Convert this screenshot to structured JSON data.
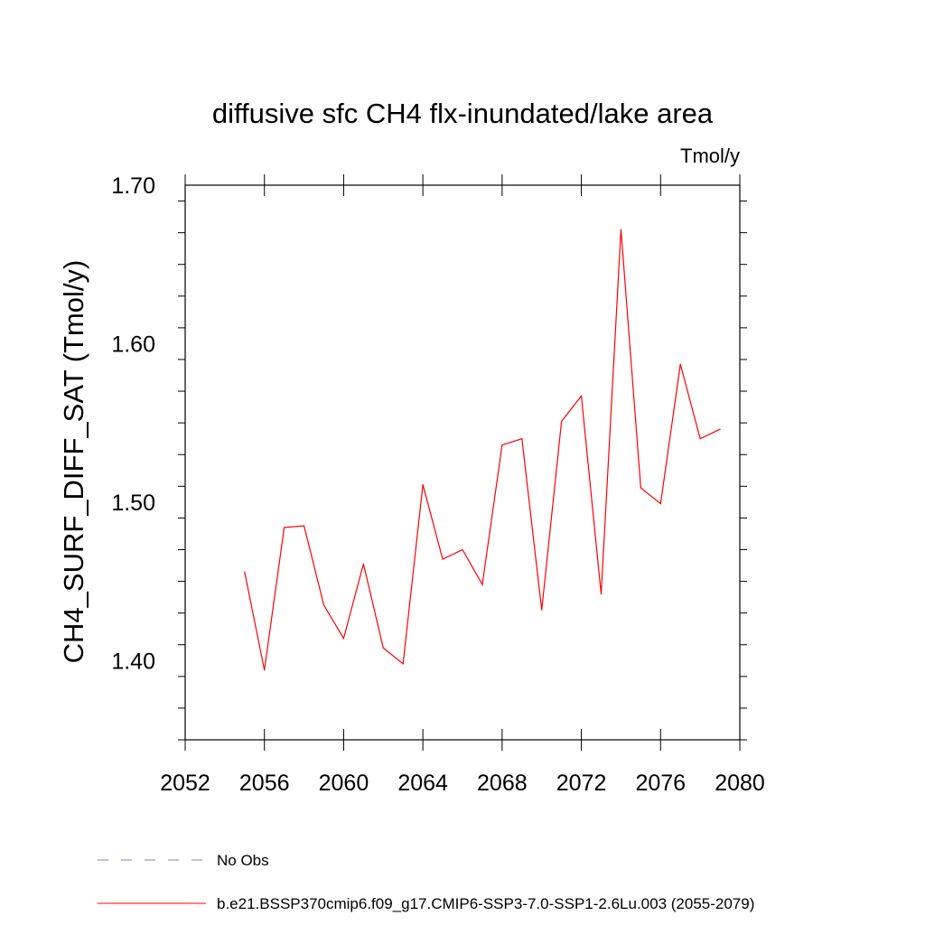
{
  "chart_data": {
    "type": "line",
    "title": "diffusive sfc CH4 flx-inundated/lake area",
    "units": "Tmol/y",
    "ylabel": "CH4_SURF_DIFF_SAT  (Tmol/y)",
    "xlabel": "",
    "xlim": [
      2052,
      2080
    ],
    "ylim": [
      1.35,
      1.7
    ],
    "x_ticks": [
      "2052",
      "2056",
      "2060",
      "2064",
      "2068",
      "2072",
      "2076",
      "2080"
    ],
    "y_ticks": [
      "1.40",
      "1.50",
      "1.60",
      "1.70"
    ],
    "grid": false,
    "legend_position": "bottom",
    "series": [
      {
        "name": "b.e21.BSSP370cmip6.f09_g17.CMIP6-SSP3-7.0-SSP1-2.6Lu.003 (2055-2079)",
        "color": "#ff0000",
        "style": "solid",
        "x": [
          2055,
          2056,
          2057,
          2058,
          2059,
          2060,
          2061,
          2062,
          2063,
          2064,
          2065,
          2066,
          2067,
          2068,
          2069,
          2070,
          2071,
          2072,
          2073,
          2074,
          2075,
          2076,
          2077,
          2078,
          2079
        ],
        "y": [
          1.456,
          1.394,
          1.484,
          1.485,
          1.435,
          1.414,
          1.461,
          1.408,
          1.398,
          1.511,
          1.464,
          1.47,
          1.448,
          1.536,
          1.54,
          1.432,
          1.551,
          1.567,
          1.442,
          1.672,
          1.509,
          1.499,
          1.587,
          1.54,
          1.546
        ]
      }
    ],
    "legend": [
      {
        "label": "No Obs",
        "color": "#8080c0",
        "style": "dashed"
      },
      {
        "label": "b.e21.BSSP370cmip6.f09_g17.CMIP6-SSP3-7.0-SSP1-2.6Lu.003 (2055-2079)",
        "color": "#ff0000",
        "style": "solid"
      }
    ]
  }
}
